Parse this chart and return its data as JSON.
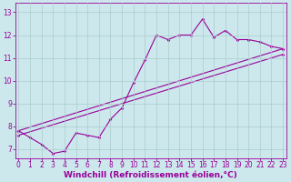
{
  "xlabel": "Windchill (Refroidissement éolien,°C)",
  "bg_color": "#cce8ec",
  "grid_color": "#aacccc",
  "line_color": "#990099",
  "x_ticks": [
    0,
    1,
    2,
    3,
    4,
    5,
    6,
    7,
    8,
    9,
    10,
    11,
    12,
    13,
    14,
    15,
    16,
    17,
    18,
    19,
    20,
    21,
    22,
    23
  ],
  "y_ticks": [
    7,
    8,
    9,
    10,
    11,
    12,
    13
  ],
  "xlim": [
    -0.3,
    23.3
  ],
  "ylim": [
    6.6,
    13.4
  ],
  "line1_x": [
    0,
    1,
    2,
    3,
    4,
    5,
    6,
    7,
    8,
    9,
    10,
    11,
    12,
    13,
    14,
    15,
    16,
    17,
    18,
    19,
    20,
    21,
    22,
    23
  ],
  "line1_y": [
    7.8,
    7.5,
    7.2,
    6.8,
    6.9,
    7.7,
    7.6,
    7.5,
    8.3,
    8.8,
    9.9,
    10.9,
    12.0,
    11.8,
    12.0,
    12.0,
    12.7,
    11.9,
    12.2,
    11.8,
    11.8,
    11.7,
    11.5,
    11.4
  ],
  "line2_x": [
    0,
    23
  ],
  "line2_y": [
    7.8,
    11.4
  ],
  "line3_x": [
    0,
    23
  ],
  "line3_y": [
    7.6,
    11.15
  ],
  "tick_fontsize": 5.5,
  "xlabel_fontsize": 6.5,
  "lw": 0.8,
  "marker_size": 1.8
}
